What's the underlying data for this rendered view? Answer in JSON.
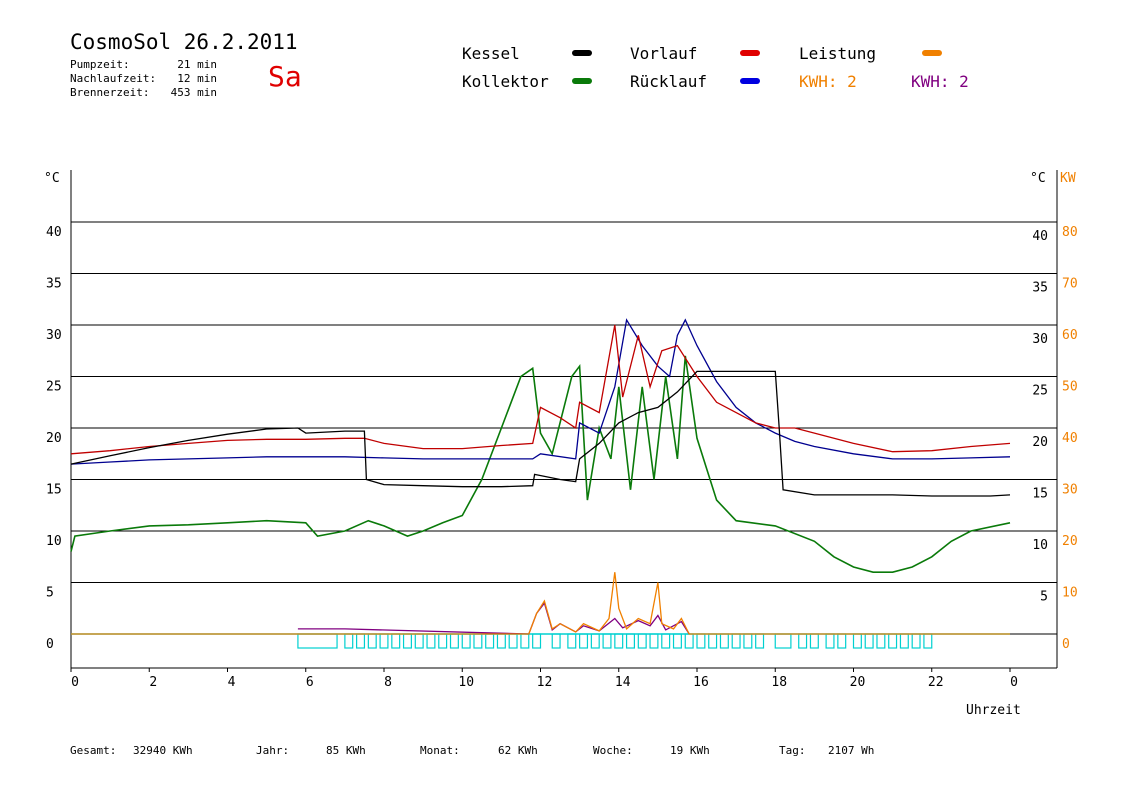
{
  "header": {
    "title": "CosmoSol 26.2.2011",
    "day": "Sa",
    "pumpzeit_label": "Pumpzeit:",
    "pumpzeit_value": "21 min",
    "nachlaufzeit_label": "Nachlaufzeit:",
    "nachlaufzeit_value": "12 min",
    "brennerzeit_label": "Brennerzeit:",
    "brennerzeit_value": "453 min"
  },
  "legend": {
    "kessel": {
      "label": "Kessel",
      "color": "#000000"
    },
    "kollektor": {
      "label": "Kollektor",
      "color": "#0a7a0a"
    },
    "vorlauf": {
      "label": "Vorlauf",
      "color": "#e00000"
    },
    "ruecklauf": {
      "label": "Rücklauf",
      "color": "#0000e0"
    },
    "leistung": {
      "label": "Leistung",
      "color": "#f08000"
    },
    "kwh_orange": "KWH: 2",
    "kwh_purple": "KWH: 2"
  },
  "footer": {
    "gesamt_label": "Gesamt:",
    "gesamt_value": "32940 KWh",
    "jahr_label": "Jahr:",
    "jahr_value": "85 KWh",
    "monat_label": "Monat:",
    "monat_value": "62 KWh",
    "woche_label": "Woche:",
    "woche_value": "19 KWh",
    "tag_label": "Tag:",
    "tag_value": "2107 Wh"
  },
  "chart_data": {
    "type": "line",
    "xlabel": "Uhrzeit",
    "x_ticks": [
      "0",
      "2",
      "4",
      "6",
      "8",
      "10",
      "12",
      "14",
      "16",
      "18",
      "20",
      "22",
      "0"
    ],
    "xlim": [
      0,
      24
    ],
    "ylabel_left": "°C",
    "ylabel_right": "°C",
    "ylabel_right2": "KW",
    "ylim": [
      0,
      40
    ],
    "y_ticks_left": [
      "0",
      "5",
      "10",
      "15",
      "20",
      "25",
      "30",
      "35",
      "40"
    ],
    "y_ticks_right": [
      "5",
      "10",
      "15",
      "20",
      "25",
      "30",
      "35",
      "40"
    ],
    "y_ticks_kw": [
      "0",
      "10",
      "20",
      "30",
      "40",
      "50",
      "60",
      "70",
      "80"
    ],
    "colors": {
      "kessel": "#000000",
      "kollektor": "#0a7a0a",
      "vorlauf": "#c00000",
      "ruecklauf": "#000090",
      "leistung": "#f08000",
      "kwh": "#800080",
      "status": "#00d0d0"
    },
    "series": [
      {
        "name": "Kessel",
        "key": "kessel",
        "points": [
          [
            0,
            16.5
          ],
          [
            1,
            17.3
          ],
          [
            2,
            18.1
          ],
          [
            3,
            18.8
          ],
          [
            4,
            19.4
          ],
          [
            5,
            19.9
          ],
          [
            5.8,
            20.0
          ],
          [
            6.0,
            19.5
          ],
          [
            7.0,
            19.7
          ],
          [
            7.5,
            19.7
          ],
          [
            7.55,
            15.0
          ],
          [
            8,
            14.5
          ],
          [
            9,
            14.4
          ],
          [
            10,
            14.3
          ],
          [
            11,
            14.3
          ],
          [
            11.8,
            14.4
          ],
          [
            11.85,
            15.5
          ],
          [
            12.5,
            15.0
          ],
          [
            12.9,
            14.8
          ],
          [
            13.0,
            17.0
          ],
          [
            13.5,
            18.5
          ],
          [
            14,
            20.5
          ],
          [
            14.5,
            21.5
          ],
          [
            15,
            22.0
          ],
          [
            15.5,
            23.5
          ],
          [
            16,
            25.5
          ],
          [
            17,
            25.5
          ],
          [
            18,
            25.5
          ],
          [
            18.1,
            20.0
          ],
          [
            18.2,
            14.0
          ],
          [
            19,
            13.5
          ],
          [
            20,
            13.5
          ],
          [
            21,
            13.5
          ],
          [
            22,
            13.4
          ],
          [
            23.5,
            13.4
          ],
          [
            24,
            13.5
          ]
        ]
      },
      {
        "name": "Vorlauf",
        "key": "vorlauf",
        "points": [
          [
            0,
            17.5
          ],
          [
            1,
            17.8
          ],
          [
            2,
            18.2
          ],
          [
            3,
            18.5
          ],
          [
            4,
            18.8
          ],
          [
            5,
            18.9
          ],
          [
            6,
            18.9
          ],
          [
            7,
            19.0
          ],
          [
            7.5,
            19.0
          ],
          [
            8,
            18.5
          ],
          [
            9,
            18.0
          ],
          [
            10,
            18.0
          ],
          [
            11,
            18.3
          ],
          [
            11.8,
            18.5
          ],
          [
            12.0,
            22.0
          ],
          [
            12.5,
            21.0
          ],
          [
            12.9,
            20.0
          ],
          [
            13.0,
            22.5
          ],
          [
            13.5,
            21.5
          ],
          [
            13.9,
            30.0
          ],
          [
            14.1,
            23.0
          ],
          [
            14.5,
            29.0
          ],
          [
            14.8,
            24.0
          ],
          [
            15.1,
            27.5
          ],
          [
            15.5,
            28.0
          ],
          [
            16,
            25.0
          ],
          [
            16.5,
            22.5
          ],
          [
            17,
            21.5
          ],
          [
            17.5,
            20.5
          ],
          [
            18,
            20.0
          ],
          [
            18.5,
            20.0
          ],
          [
            19,
            19.5
          ],
          [
            20,
            18.5
          ],
          [
            21,
            17.7
          ],
          [
            22,
            17.8
          ],
          [
            23,
            18.2
          ],
          [
            24,
            18.5
          ]
        ]
      },
      {
        "name": "Rücklauf",
        "key": "ruecklauf",
        "points": [
          [
            0,
            16.5
          ],
          [
            1,
            16.7
          ],
          [
            2,
            16.9
          ],
          [
            3,
            17.0
          ],
          [
            4,
            17.1
          ],
          [
            5,
            17.2
          ],
          [
            6,
            17.2
          ],
          [
            7,
            17.2
          ],
          [
            8,
            17.1
          ],
          [
            9,
            17.0
          ],
          [
            10,
            17.0
          ],
          [
            11,
            17.0
          ],
          [
            11.8,
            17.0
          ],
          [
            12,
            17.5
          ],
          [
            12.9,
            17.0
          ],
          [
            13.0,
            20.5
          ],
          [
            13.5,
            19.5
          ],
          [
            13.9,
            24.0
          ],
          [
            14.2,
            30.5
          ],
          [
            14.6,
            28.0
          ],
          [
            15,
            26.0
          ],
          [
            15.3,
            25.0
          ],
          [
            15.5,
            29.0
          ],
          [
            15.7,
            30.5
          ],
          [
            16,
            28.0
          ],
          [
            16.5,
            24.5
          ],
          [
            17,
            22.0
          ],
          [
            17.5,
            20.5
          ],
          [
            18,
            19.5
          ],
          [
            18.5,
            18.7
          ],
          [
            19,
            18.2
          ],
          [
            20,
            17.5
          ],
          [
            21,
            17.0
          ],
          [
            22,
            17.0
          ],
          [
            23,
            17.1
          ],
          [
            24,
            17.2
          ]
        ]
      },
      {
        "name": "Kollektor",
        "key": "kollektor",
        "points": [
          [
            0,
            8.0
          ],
          [
            0.1,
            9.5
          ],
          [
            1,
            10.0
          ],
          [
            2,
            10.5
          ],
          [
            3,
            10.6
          ],
          [
            4,
            10.8
          ],
          [
            5,
            11.0
          ],
          [
            6,
            10.8
          ],
          [
            6.3,
            9.5
          ],
          [
            7,
            10.0
          ],
          [
            7.6,
            11.0
          ],
          [
            8,
            10.5
          ],
          [
            8.6,
            9.5
          ],
          [
            9,
            10.0
          ],
          [
            9.5,
            10.8
          ],
          [
            10,
            11.5
          ],
          [
            10.5,
            15.0
          ],
          [
            11,
            20.0
          ],
          [
            11.5,
            25.0
          ],
          [
            11.8,
            25.8
          ],
          [
            12.0,
            19.5
          ],
          [
            12.3,
            17.5
          ],
          [
            12.8,
            25.0
          ],
          [
            13.0,
            26.0
          ],
          [
            13.2,
            13.0
          ],
          [
            13.5,
            20.0
          ],
          [
            13.8,
            17.0
          ],
          [
            14.0,
            24.0
          ],
          [
            14.3,
            14.0
          ],
          [
            14.6,
            24.0
          ],
          [
            14.9,
            15.0
          ],
          [
            15.2,
            25.0
          ],
          [
            15.5,
            17.0
          ],
          [
            15.7,
            27.0
          ],
          [
            16,
            19.0
          ],
          [
            16.5,
            13.0
          ],
          [
            17,
            11.0
          ],
          [
            18,
            10.5
          ],
          [
            19,
            9.0
          ],
          [
            19.5,
            7.5
          ],
          [
            20,
            6.5
          ],
          [
            20.5,
            6.0
          ],
          [
            21,
            6.0
          ],
          [
            21.5,
            6.5
          ],
          [
            22,
            7.5
          ],
          [
            22.5,
            9.0
          ],
          [
            23,
            10.0
          ],
          [
            24,
            10.8
          ]
        ]
      },
      {
        "name": "Leistung",
        "key": "leistung",
        "points": [
          [
            0,
            0
          ],
          [
            11.7,
            0
          ],
          [
            11.9,
            2.0
          ],
          [
            12.1,
            3.2
          ],
          [
            12.3,
            0.5
          ],
          [
            12.5,
            1.0
          ],
          [
            12.9,
            0.2
          ],
          [
            13.1,
            1.0
          ],
          [
            13.5,
            0.3
          ],
          [
            13.75,
            1.5
          ],
          [
            13.9,
            6.0
          ],
          [
            14.0,
            2.5
          ],
          [
            14.2,
            0.5
          ],
          [
            14.5,
            1.5
          ],
          [
            14.8,
            1.0
          ],
          [
            15.0,
            5.0
          ],
          [
            15.1,
            1.0
          ],
          [
            15.4,
            0.5
          ],
          [
            15.6,
            1.5
          ],
          [
            15.8,
            0
          ],
          [
            24,
            0
          ]
        ]
      },
      {
        "name": "KWH",
        "key": "kwh",
        "points": [
          [
            5.8,
            0.5
          ],
          [
            7.0,
            0.5
          ],
          [
            11.7,
            0
          ],
          [
            11.9,
            2.0
          ],
          [
            12.1,
            3.0
          ],
          [
            12.3,
            0.4
          ],
          [
            12.5,
            1.0
          ],
          [
            12.9,
            0.2
          ],
          [
            13.1,
            0.8
          ],
          [
            13.5,
            0.3
          ],
          [
            13.9,
            1.5
          ],
          [
            14.1,
            0.6
          ],
          [
            14.5,
            1.3
          ],
          [
            14.8,
            0.8
          ],
          [
            15.0,
            1.8
          ],
          [
            15.2,
            0.4
          ],
          [
            15.6,
            1.2
          ],
          [
            15.8,
            0
          ]
        ]
      }
    ],
    "status_blocks": [
      [
        5.8,
        6.8
      ],
      [
        7.0,
        7.2
      ],
      [
        7.3,
        7.5
      ],
      [
        7.6,
        7.8
      ],
      [
        7.9,
        8.1
      ],
      [
        8.2,
        8.4
      ],
      [
        8.5,
        8.7
      ],
      [
        8.8,
        9.0
      ],
      [
        9.1,
        9.3
      ],
      [
        9.4,
        9.6
      ],
      [
        9.7,
        9.9
      ],
      [
        10.0,
        10.2
      ],
      [
        10.3,
        10.5
      ],
      [
        10.6,
        10.8
      ],
      [
        10.9,
        11.1
      ],
      [
        11.2,
        11.4
      ],
      [
        11.5,
        11.7
      ],
      [
        11.8,
        12.0
      ],
      [
        12.3,
        12.5
      ],
      [
        12.7,
        12.9
      ],
      [
        13.0,
        13.2
      ],
      [
        13.3,
        13.5
      ],
      [
        13.6,
        13.8
      ],
      [
        13.9,
        14.1
      ],
      [
        14.2,
        14.4
      ],
      [
        14.5,
        14.7
      ],
      [
        14.8,
        15.0
      ],
      [
        15.1,
        15.3
      ],
      [
        15.4,
        15.6
      ],
      [
        15.7,
        15.9
      ],
      [
        16.0,
        16.2
      ],
      [
        16.3,
        16.5
      ],
      [
        16.6,
        16.8
      ],
      [
        16.9,
        17.1
      ],
      [
        17.2,
        17.4
      ],
      [
        17.5,
        17.7
      ],
      [
        18.0,
        18.4
      ],
      [
        18.6,
        18.8
      ],
      [
        18.9,
        19.1
      ],
      [
        19.3,
        19.5
      ],
      [
        19.6,
        19.8
      ],
      [
        20.0,
        20.2
      ],
      [
        20.3,
        20.5
      ],
      [
        20.6,
        20.8
      ],
      [
        20.9,
        21.1
      ],
      [
        21.2,
        21.4
      ],
      [
        21.5,
        21.7
      ],
      [
        21.8,
        22.0
      ]
    ]
  }
}
